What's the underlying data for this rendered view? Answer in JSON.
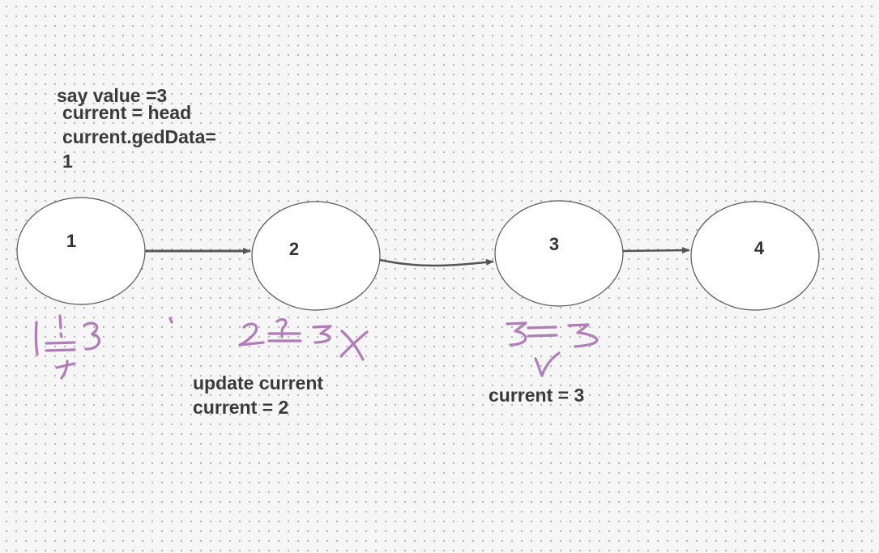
{
  "notes": {
    "say_value": "say value =3",
    "init_line1": "current = head",
    "init_line2": "current.gedData=",
    "init_line3": "1",
    "update_line1": "update current",
    "update_line2": "current = 2",
    "current_three": "current = 3"
  },
  "nodes": [
    {
      "label": "1"
    },
    {
      "label": "2"
    },
    {
      "label": "3"
    },
    {
      "label": "4"
    }
  ],
  "colors": {
    "node_fill": "#ffffff",
    "node_stroke": "#555555",
    "arrow": "#555555",
    "ink": "#b07cb9",
    "text": "#3a3a3a"
  }
}
